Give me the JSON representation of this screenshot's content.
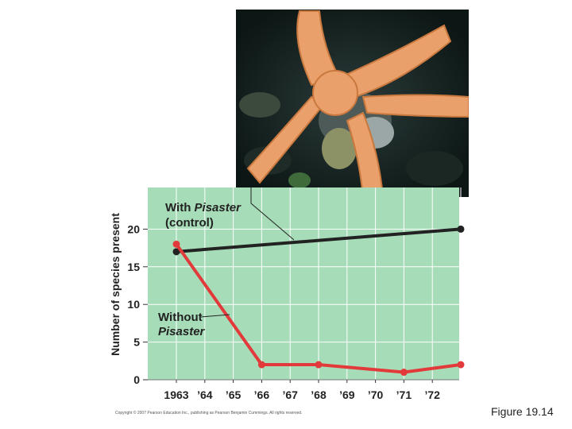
{
  "figure_caption": "Figure 19.14",
  "copyright": "Copyright © 2007 Pearson Education Inc., publishing as Pearson Benjamin Cummings. All rights reserved.",
  "colors": {
    "plot_background": "#a6dcb8",
    "grid": "#ffffff",
    "with_series": "#222222",
    "without_series": "#e23a3a"
  },
  "chart_data": {
    "type": "line",
    "title": "",
    "xlabel": "",
    "ylabel": "Number of species present",
    "categories": [
      "1963",
      "’64",
      "’65",
      "’66",
      "’67",
      "’68",
      "’69",
      "’70",
      "’71",
      "’72"
    ],
    "ylim": [
      0,
      25
    ],
    "yticks": [
      "0",
      "5",
      "10",
      "15",
      "20"
    ],
    "grid": true,
    "series": [
      {
        "name": "With Pisaster (control)",
        "points": [
          [
            1963,
            17
          ],
          [
            1973,
            20
          ]
        ]
      },
      {
        "name": "Without Pisaster",
        "points": [
          [
            1963,
            18
          ],
          [
            1966,
            2
          ],
          [
            1968,
            2
          ],
          [
            1971,
            1
          ],
          [
            1973,
            2
          ]
        ]
      }
    ],
    "annotations": {
      "with": {
        "line1_prefix": "With ",
        "line1_italic": "Pisaster",
        "line2": "(control)"
      },
      "without": {
        "line1": "Without",
        "line2_italic": "Pisaster"
      }
    }
  }
}
